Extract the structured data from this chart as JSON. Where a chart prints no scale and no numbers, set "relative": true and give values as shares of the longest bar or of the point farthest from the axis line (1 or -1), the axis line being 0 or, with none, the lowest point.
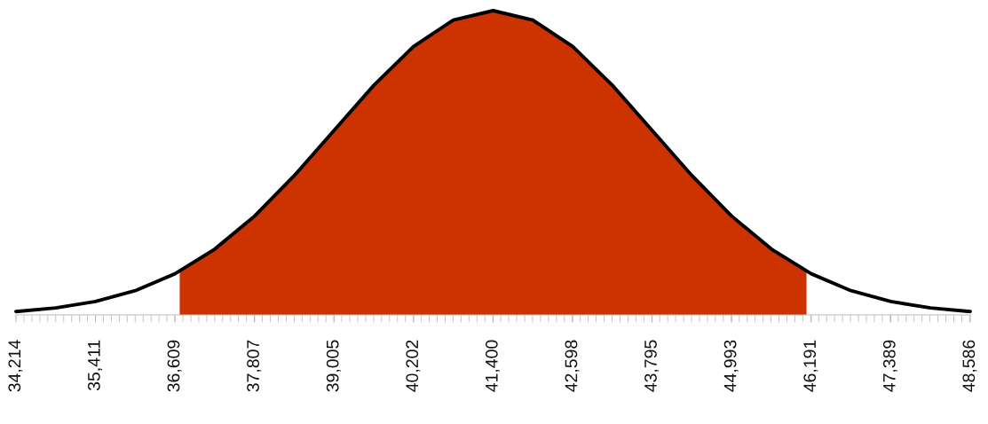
{
  "chart_data": {
    "type": "line",
    "relative": true,
    "xlim": [
      34214,
      48586
    ],
    "xticks": [
      {
        "value": 34214,
        "label": "34,214"
      },
      {
        "value": 35411,
        "label": "35,411"
      },
      {
        "value": 36609,
        "label": "36,609"
      },
      {
        "value": 37807,
        "label": "37,807"
      },
      {
        "value": 39005,
        "label": "39,005"
      },
      {
        "value": 40202,
        "label": "40,202"
      },
      {
        "value": 41400,
        "label": "41,400"
      },
      {
        "value": 42598,
        "label": "42,598"
      },
      {
        "value": 43795,
        "label": "43,795"
      },
      {
        "value": 44993,
        "label": "44,993"
      },
      {
        "value": 46191,
        "label": "46,191"
      },
      {
        "value": 47389,
        "label": "47,389"
      },
      {
        "value": 48586,
        "label": "48,586"
      }
    ],
    "tick_labels": "x",
    "grid": false,
    "legend": false,
    "series": [
      {
        "type": "area",
        "color": "#cc3300",
        "x": [
          36680,
          37208,
          37807,
          38406,
          39005,
          39604,
          40202,
          40801,
          41400,
          41999,
          42598,
          43196,
          43795,
          44394,
          44993,
          45592,
          46120
        ],
        "values": [
          0.1437,
          0.2163,
          0.3247,
          0.4578,
          0.6065,
          0.7548,
          0.8825,
          0.9692,
          1,
          0.9692,
          0.8825,
          0.7548,
          0.6065,
          0.4578,
          0.3247,
          0.2163,
          0.1437
        ]
      },
      {
        "color": "#000000",
        "x": [
          34214,
          34813,
          35411,
          36010,
          36609,
          37208,
          37807,
          38406,
          39005,
          39604,
          40202,
          40801,
          41400,
          41999,
          42598,
          43196,
          43795,
          44394,
          44993,
          45592,
          46191,
          46790,
          47389,
          47988,
          48586
        ],
        "values": [
          0.0111,
          0.0228,
          0.0439,
          0.0796,
          0.1353,
          0.2163,
          0.3247,
          0.4578,
          0.6065,
          0.7548,
          0.8825,
          0.9692,
          1,
          0.9692,
          0.8825,
          0.7548,
          0.6065,
          0.4578,
          0.3247,
          0.2163,
          0.1353,
          0.0796,
          0.0439,
          0.0228,
          0.0111
        ]
      }
    ]
  }
}
